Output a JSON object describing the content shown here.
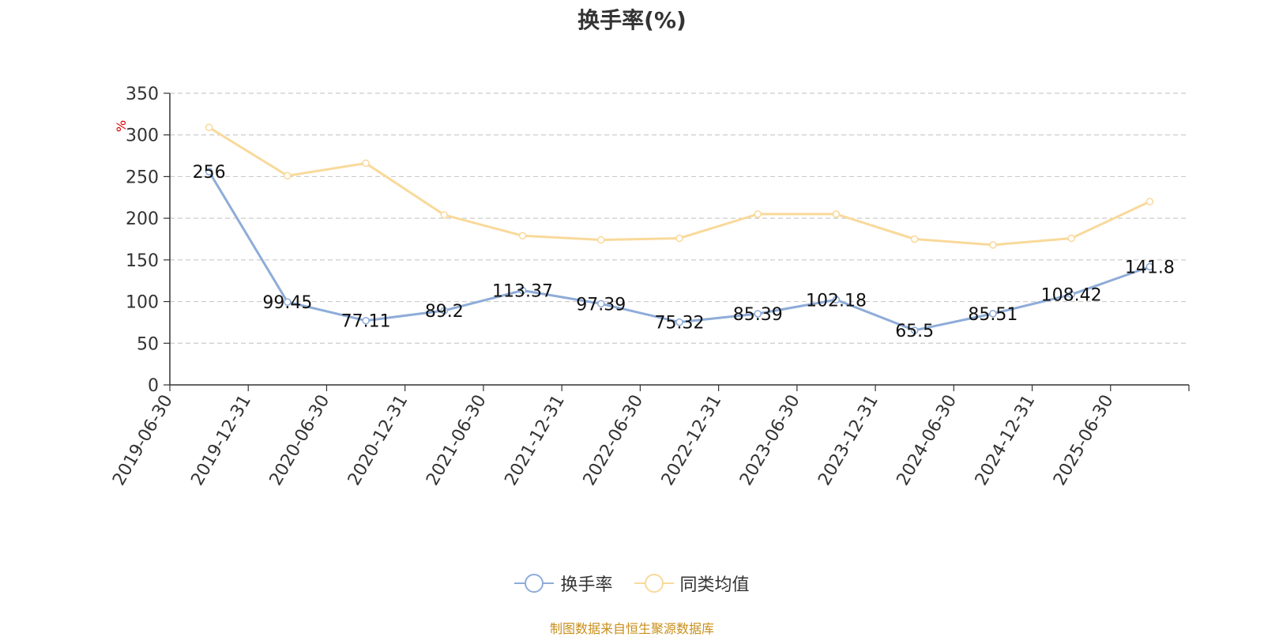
{
  "chart_data": {
    "type": "line",
    "title": "换手率(%)",
    "ylabel": "%",
    "ylim": [
      0,
      350
    ],
    "yticks": [
      "0",
      "50",
      "100",
      "150",
      "200",
      "250",
      "300",
      "350"
    ],
    "categories": [
      "2019-06-30",
      "2019-12-31",
      "2020-06-30",
      "2020-12-31",
      "2021-06-30",
      "2021-12-31",
      "2022-06-30",
      "2022-12-31",
      "2023-06-30",
      "2023-12-31",
      "2024-06-30",
      "2024-12-31",
      "2025-06-30"
    ],
    "series": [
      {
        "name": "换手率",
        "color": "#8eacd8",
        "values": [
          256,
          99.45,
          77.11,
          89.2,
          113.37,
          97.39,
          75.32,
          85.39,
          102.18,
          65.5,
          85.51,
          108.42,
          141.8
        ],
        "labels": [
          "256",
          "99.45",
          "77.11",
          "89.2",
          "113.37",
          "97.39",
          "75.32",
          "85.39",
          "102.18",
          "65.5",
          "85.51",
          "108.42",
          "141.8"
        ]
      },
      {
        "name": "同类均值",
        "color": "#f9d99a",
        "values": [
          309,
          251,
          266,
          204,
          179,
          174,
          176,
          205,
          205,
          175,
          168,
          176,
          220
        ]
      }
    ],
    "grid": true,
    "legend_position": "bottom"
  },
  "source": "制图数据来自恒生聚源数据库"
}
